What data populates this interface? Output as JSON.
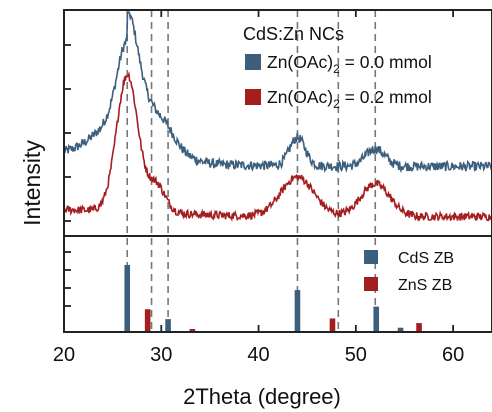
{
  "chart_data": {
    "type": "line",
    "xlabel": "2Theta (degree)",
    "ylabel": "Intensity",
    "xlim": [
      20,
      64
    ],
    "xticks": [
      20,
      30,
      40,
      50,
      60
    ],
    "grid": false,
    "legend_title": "CdS:Zn NCs",
    "legend_position": "top-right",
    "series": [
      {
        "name": "Zn(OAc)₂ = 0.0 mmol",
        "label_base": "Zn(OAc)",
        "label_sub": "2",
        "label_tail": " = 0.0 mmol",
        "color": "#3d5f7e",
        "peaks": [
          {
            "x": 26.5,
            "height": 0.34,
            "width": 1.0
          },
          {
            "x": 30.5,
            "height": 0.04,
            "width": 1.0
          },
          {
            "x": 44.0,
            "height": 0.13,
            "width": 0.8
          },
          {
            "x": 52.0,
            "height": 0.08,
            "width": 1.0
          }
        ],
        "baseline": 0.3,
        "broad_height": 0.35,
        "broad_width": 3.0,
        "noise": 0.022
      },
      {
        "name": "Zn(OAc)₂ = 0.2 mmol",
        "label_base": "Zn(OAc)",
        "label_sub": "2",
        "label_tail": " = 0.2 mmol",
        "color": "#a31f1f",
        "peaks": [
          {
            "x": 26.5,
            "height": 0.62,
            "width": 1.1
          },
          {
            "x": 29.5,
            "height": 0.12,
            "width": 0.9
          },
          {
            "x": 44.0,
            "height": 0.18,
            "width": 1.7
          },
          {
            "x": 52.0,
            "height": 0.15,
            "width": 1.5
          }
        ],
        "baseline": 0.07,
        "broad_height": 0.02,
        "broad_width": 4.0,
        "noise": 0.018
      }
    ],
    "references": [
      {
        "name": "CdS ZB",
        "color": "#3d5f7e",
        "lines": [
          {
            "x": 26.5,
            "intensity": 100
          },
          {
            "x": 30.7,
            "intensity": 18
          },
          {
            "x": 44.0,
            "intensity": 62
          },
          {
            "x": 52.1,
            "intensity": 37
          },
          {
            "x": 54.6,
            "intensity": 5
          }
        ]
      },
      {
        "name": "ZnS ZB",
        "color": "#a31f1f",
        "lines": [
          {
            "x": 28.6,
            "intensity": 33
          },
          {
            "x": 33.2,
            "intensity": 3
          },
          {
            "x": 47.6,
            "intensity": 19
          },
          {
            "x": 56.5,
            "intensity": 12
          }
        ]
      }
    ],
    "dashed_lines_x": [
      26.5,
      29.0,
      30.7,
      44.0,
      48.2,
      52.0
    ]
  }
}
